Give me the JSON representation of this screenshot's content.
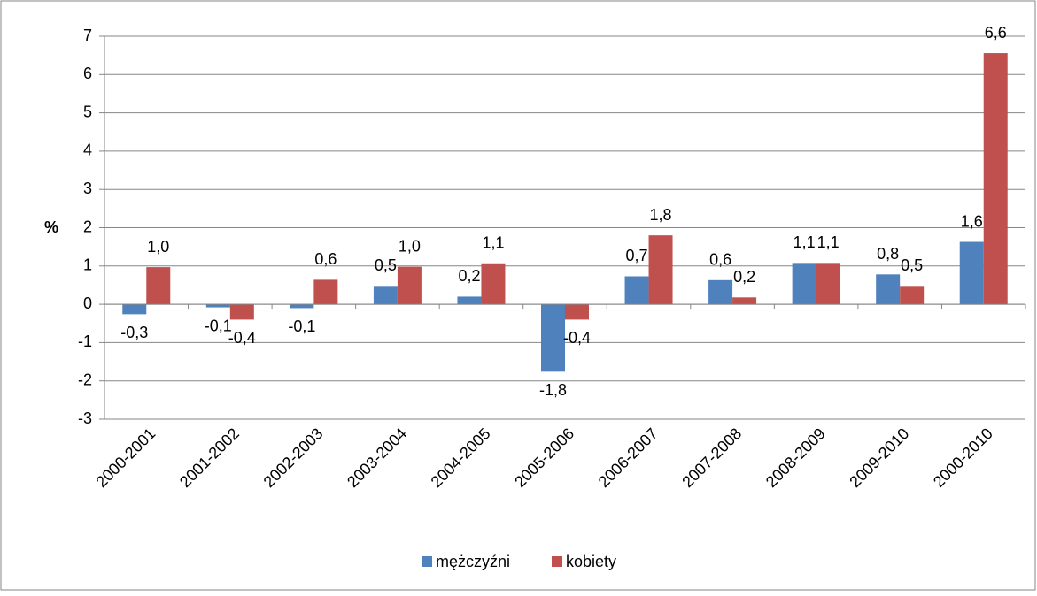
{
  "chart_data": {
    "type": "bar",
    "y_label": "%",
    "categories": [
      "2000-2001",
      "2001-2002",
      "2002-2003",
      "2003-2004",
      "2004-2005",
      "2005-2006",
      "2006-2007",
      "2007-2008",
      "2008-2009",
      "2009-2010",
      "2000-2010"
    ],
    "series": [
      {
        "name": "mężczyźni",
        "color": "#4f81bd",
        "values": [
          -0.26,
          -0.08,
          -0.1,
          0.48,
          0.2,
          -1.76,
          0.73,
          0.63,
          1.08,
          0.78,
          1.63
        ],
        "value_labels": [
          "-0,3",
          "-0,1",
          "-0,1",
          "0,5",
          "0,2",
          "-1,8",
          "0,7",
          "0,6",
          "1,1",
          "0,8",
          "1,6"
        ]
      },
      {
        "name": "kobiety",
        "color": "#c0504d",
        "values": [
          0.97,
          -0.4,
          0.64,
          0.98,
          1.07,
          -0.4,
          1.8,
          0.18,
          1.08,
          0.48,
          6.56
        ],
        "value_labels": [
          "1,0",
          "-0,4",
          "0,6",
          "1,0",
          "1,1",
          "-0,4",
          "1,8",
          "0,2",
          "1,1",
          "0,5",
          "6,6"
        ]
      }
    ],
    "ylim": [
      -3,
      7
    ],
    "yticks": [
      -3,
      -2,
      -1,
      0,
      1,
      2,
      3,
      4,
      5,
      6,
      7
    ],
    "grid": true,
    "legend": "bottom"
  }
}
